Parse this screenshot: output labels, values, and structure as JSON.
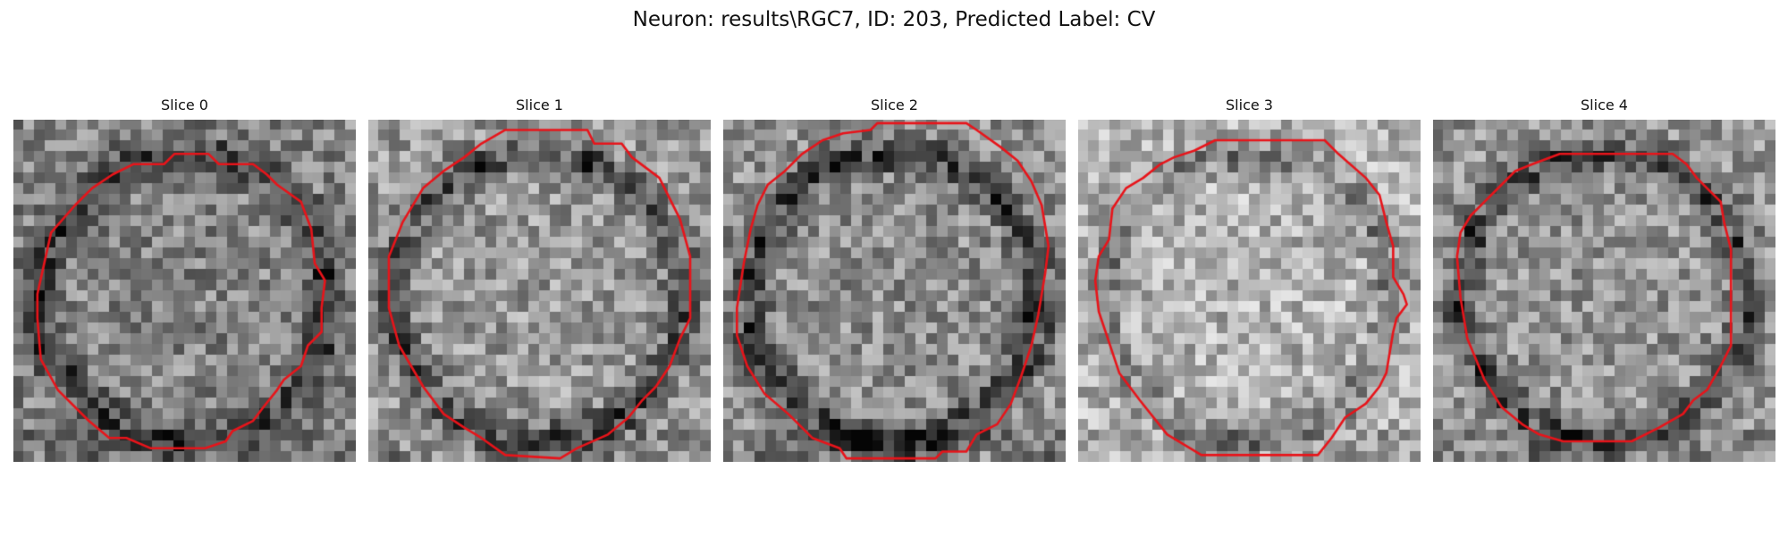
{
  "figure": {
    "title": "Neuron: results\\RGC7, ID: 203, Predicted Label: CV",
    "contour_color": "#e8141a",
    "slices": [
      {
        "title": "Slice 0",
        "brightness": 0.52,
        "rim_darkness": 0.3,
        "seed": 11,
        "contour": [
          [
            0.47,
            0.1
          ],
          [
            0.57,
            0.1
          ],
          [
            0.6,
            0.13
          ],
          [
            0.7,
            0.13
          ],
          [
            0.74,
            0.16
          ],
          [
            0.77,
            0.19
          ],
          [
            0.84,
            0.24
          ],
          [
            0.87,
            0.32
          ],
          [
            0.88,
            0.42
          ],
          [
            0.91,
            0.47
          ],
          [
            0.9,
            0.55
          ],
          [
            0.9,
            0.62
          ],
          [
            0.86,
            0.66
          ],
          [
            0.84,
            0.72
          ],
          [
            0.79,
            0.76
          ],
          [
            0.77,
            0.79
          ],
          [
            0.73,
            0.84
          ],
          [
            0.7,
            0.88
          ],
          [
            0.64,
            0.91
          ],
          [
            0.62,
            0.94
          ],
          [
            0.56,
            0.96
          ],
          [
            0.4,
            0.96
          ],
          [
            0.33,
            0.93
          ],
          [
            0.28,
            0.93
          ],
          [
            0.22,
            0.88
          ],
          [
            0.13,
            0.79
          ],
          [
            0.08,
            0.7
          ],
          [
            0.07,
            0.58
          ],
          [
            0.07,
            0.51
          ],
          [
            0.09,
            0.42
          ],
          [
            0.11,
            0.33
          ],
          [
            0.18,
            0.25
          ],
          [
            0.23,
            0.2
          ],
          [
            0.29,
            0.16
          ],
          [
            0.35,
            0.13
          ],
          [
            0.44,
            0.13
          ]
        ]
      },
      {
        "title": "Slice 1",
        "brightness": 0.6,
        "rim_darkness": 0.32,
        "seed": 23,
        "contour": [
          [
            0.4,
            0.03
          ],
          [
            0.64,
            0.03
          ],
          [
            0.66,
            0.07
          ],
          [
            0.74,
            0.07
          ],
          [
            0.77,
            0.11
          ],
          [
            0.85,
            0.17
          ],
          [
            0.88,
            0.23
          ],
          [
            0.91,
            0.29
          ],
          [
            0.94,
            0.4
          ],
          [
            0.94,
            0.58
          ],
          [
            0.91,
            0.64
          ],
          [
            0.88,
            0.72
          ],
          [
            0.84,
            0.78
          ],
          [
            0.8,
            0.82
          ],
          [
            0.76,
            0.87
          ],
          [
            0.7,
            0.92
          ],
          [
            0.61,
            0.96
          ],
          [
            0.56,
            0.99
          ],
          [
            0.4,
            0.98
          ],
          [
            0.33,
            0.93
          ],
          [
            0.28,
            0.9
          ],
          [
            0.22,
            0.86
          ],
          [
            0.16,
            0.78
          ],
          [
            0.09,
            0.66
          ],
          [
            0.06,
            0.55
          ],
          [
            0.06,
            0.4
          ],
          [
            0.1,
            0.3
          ],
          [
            0.16,
            0.2
          ],
          [
            0.22,
            0.15
          ],
          [
            0.28,
            0.11
          ],
          [
            0.33,
            0.07
          ]
        ]
      },
      {
        "title": "Slice 2",
        "brightness": 0.56,
        "rim_darkness": 0.34,
        "seed": 37,
        "contour": [
          [
            0.45,
            0.01
          ],
          [
            0.43,
            0.03
          ],
          [
            0.35,
            0.04
          ],
          [
            0.29,
            0.06
          ],
          [
            0.23,
            0.1
          ],
          [
            0.18,
            0.15
          ],
          [
            0.13,
            0.19
          ],
          [
            0.1,
            0.25
          ],
          [
            0.08,
            0.32
          ],
          [
            0.06,
            0.42
          ],
          [
            0.04,
            0.55
          ],
          [
            0.04,
            0.63
          ],
          [
            0.07,
            0.72
          ],
          [
            0.12,
            0.8
          ],
          [
            0.19,
            0.86
          ],
          [
            0.26,
            0.93
          ],
          [
            0.34,
            0.96
          ],
          [
            0.36,
            0.99
          ],
          [
            0.48,
            0.99
          ],
          [
            0.62,
            0.99
          ],
          [
            0.64,
            0.97
          ],
          [
            0.71,
            0.97
          ],
          [
            0.74,
            0.92
          ],
          [
            0.8,
            0.89
          ],
          [
            0.84,
            0.83
          ],
          [
            0.87,
            0.75
          ],
          [
            0.9,
            0.66
          ],
          [
            0.92,
            0.57
          ],
          [
            0.94,
            0.45
          ],
          [
            0.95,
            0.37
          ],
          [
            0.93,
            0.25
          ],
          [
            0.9,
            0.18
          ],
          [
            0.86,
            0.12
          ],
          [
            0.81,
            0.08
          ],
          [
            0.74,
            0.03
          ],
          [
            0.71,
            0.01
          ]
        ]
      },
      {
        "title": "Slice 3",
        "brightness": 0.7,
        "rim_darkness": 0.2,
        "seed": 53,
        "contour": [
          [
            0.4,
            0.06
          ],
          [
            0.72,
            0.06
          ],
          [
            0.76,
            0.1
          ],
          [
            0.84,
            0.17
          ],
          [
            0.88,
            0.22
          ],
          [
            0.9,
            0.3
          ],
          [
            0.92,
            0.37
          ],
          [
            0.92,
            0.46
          ],
          [
            0.95,
            0.51
          ],
          [
            0.96,
            0.54
          ],
          [
            0.93,
            0.58
          ],
          [
            0.92,
            0.62
          ],
          [
            0.91,
            0.68
          ],
          [
            0.9,
            0.74
          ],
          [
            0.88,
            0.78
          ],
          [
            0.84,
            0.83
          ],
          [
            0.78,
            0.87
          ],
          [
            0.74,
            0.93
          ],
          [
            0.7,
            0.98
          ],
          [
            0.36,
            0.98
          ],
          [
            0.26,
            0.92
          ],
          [
            0.18,
            0.82
          ],
          [
            0.12,
            0.74
          ],
          [
            0.09,
            0.65
          ],
          [
            0.06,
            0.56
          ],
          [
            0.05,
            0.47
          ],
          [
            0.06,
            0.4
          ],
          [
            0.09,
            0.35
          ],
          [
            0.1,
            0.26
          ],
          [
            0.14,
            0.2
          ],
          [
            0.19,
            0.17
          ],
          [
            0.24,
            0.13
          ],
          [
            0.28,
            0.11
          ],
          [
            0.34,
            0.09
          ]
        ]
      },
      {
        "title": "Slice 4",
        "brightness": 0.58,
        "rim_darkness": 0.3,
        "seed": 71,
        "contour": [
          [
            0.37,
            0.1
          ],
          [
            0.7,
            0.1
          ],
          [
            0.74,
            0.13
          ],
          [
            0.77,
            0.17
          ],
          [
            0.8,
            0.2
          ],
          [
            0.84,
            0.24
          ],
          [
            0.85,
            0.3
          ],
          [
            0.87,
            0.38
          ],
          [
            0.87,
            0.52
          ],
          [
            0.87,
            0.66
          ],
          [
            0.84,
            0.72
          ],
          [
            0.8,
            0.79
          ],
          [
            0.76,
            0.82
          ],
          [
            0.73,
            0.86
          ],
          [
            0.66,
            0.9
          ],
          [
            0.58,
            0.94
          ],
          [
            0.38,
            0.94
          ],
          [
            0.31,
            0.92
          ],
          [
            0.26,
            0.89
          ],
          [
            0.2,
            0.84
          ],
          [
            0.15,
            0.76
          ],
          [
            0.1,
            0.64
          ],
          [
            0.08,
            0.52
          ],
          [
            0.07,
            0.4
          ],
          [
            0.08,
            0.33
          ],
          [
            0.11,
            0.28
          ],
          [
            0.15,
            0.24
          ],
          [
            0.2,
            0.19
          ],
          [
            0.24,
            0.15
          ],
          [
            0.29,
            0.13
          ]
        ]
      }
    ]
  }
}
